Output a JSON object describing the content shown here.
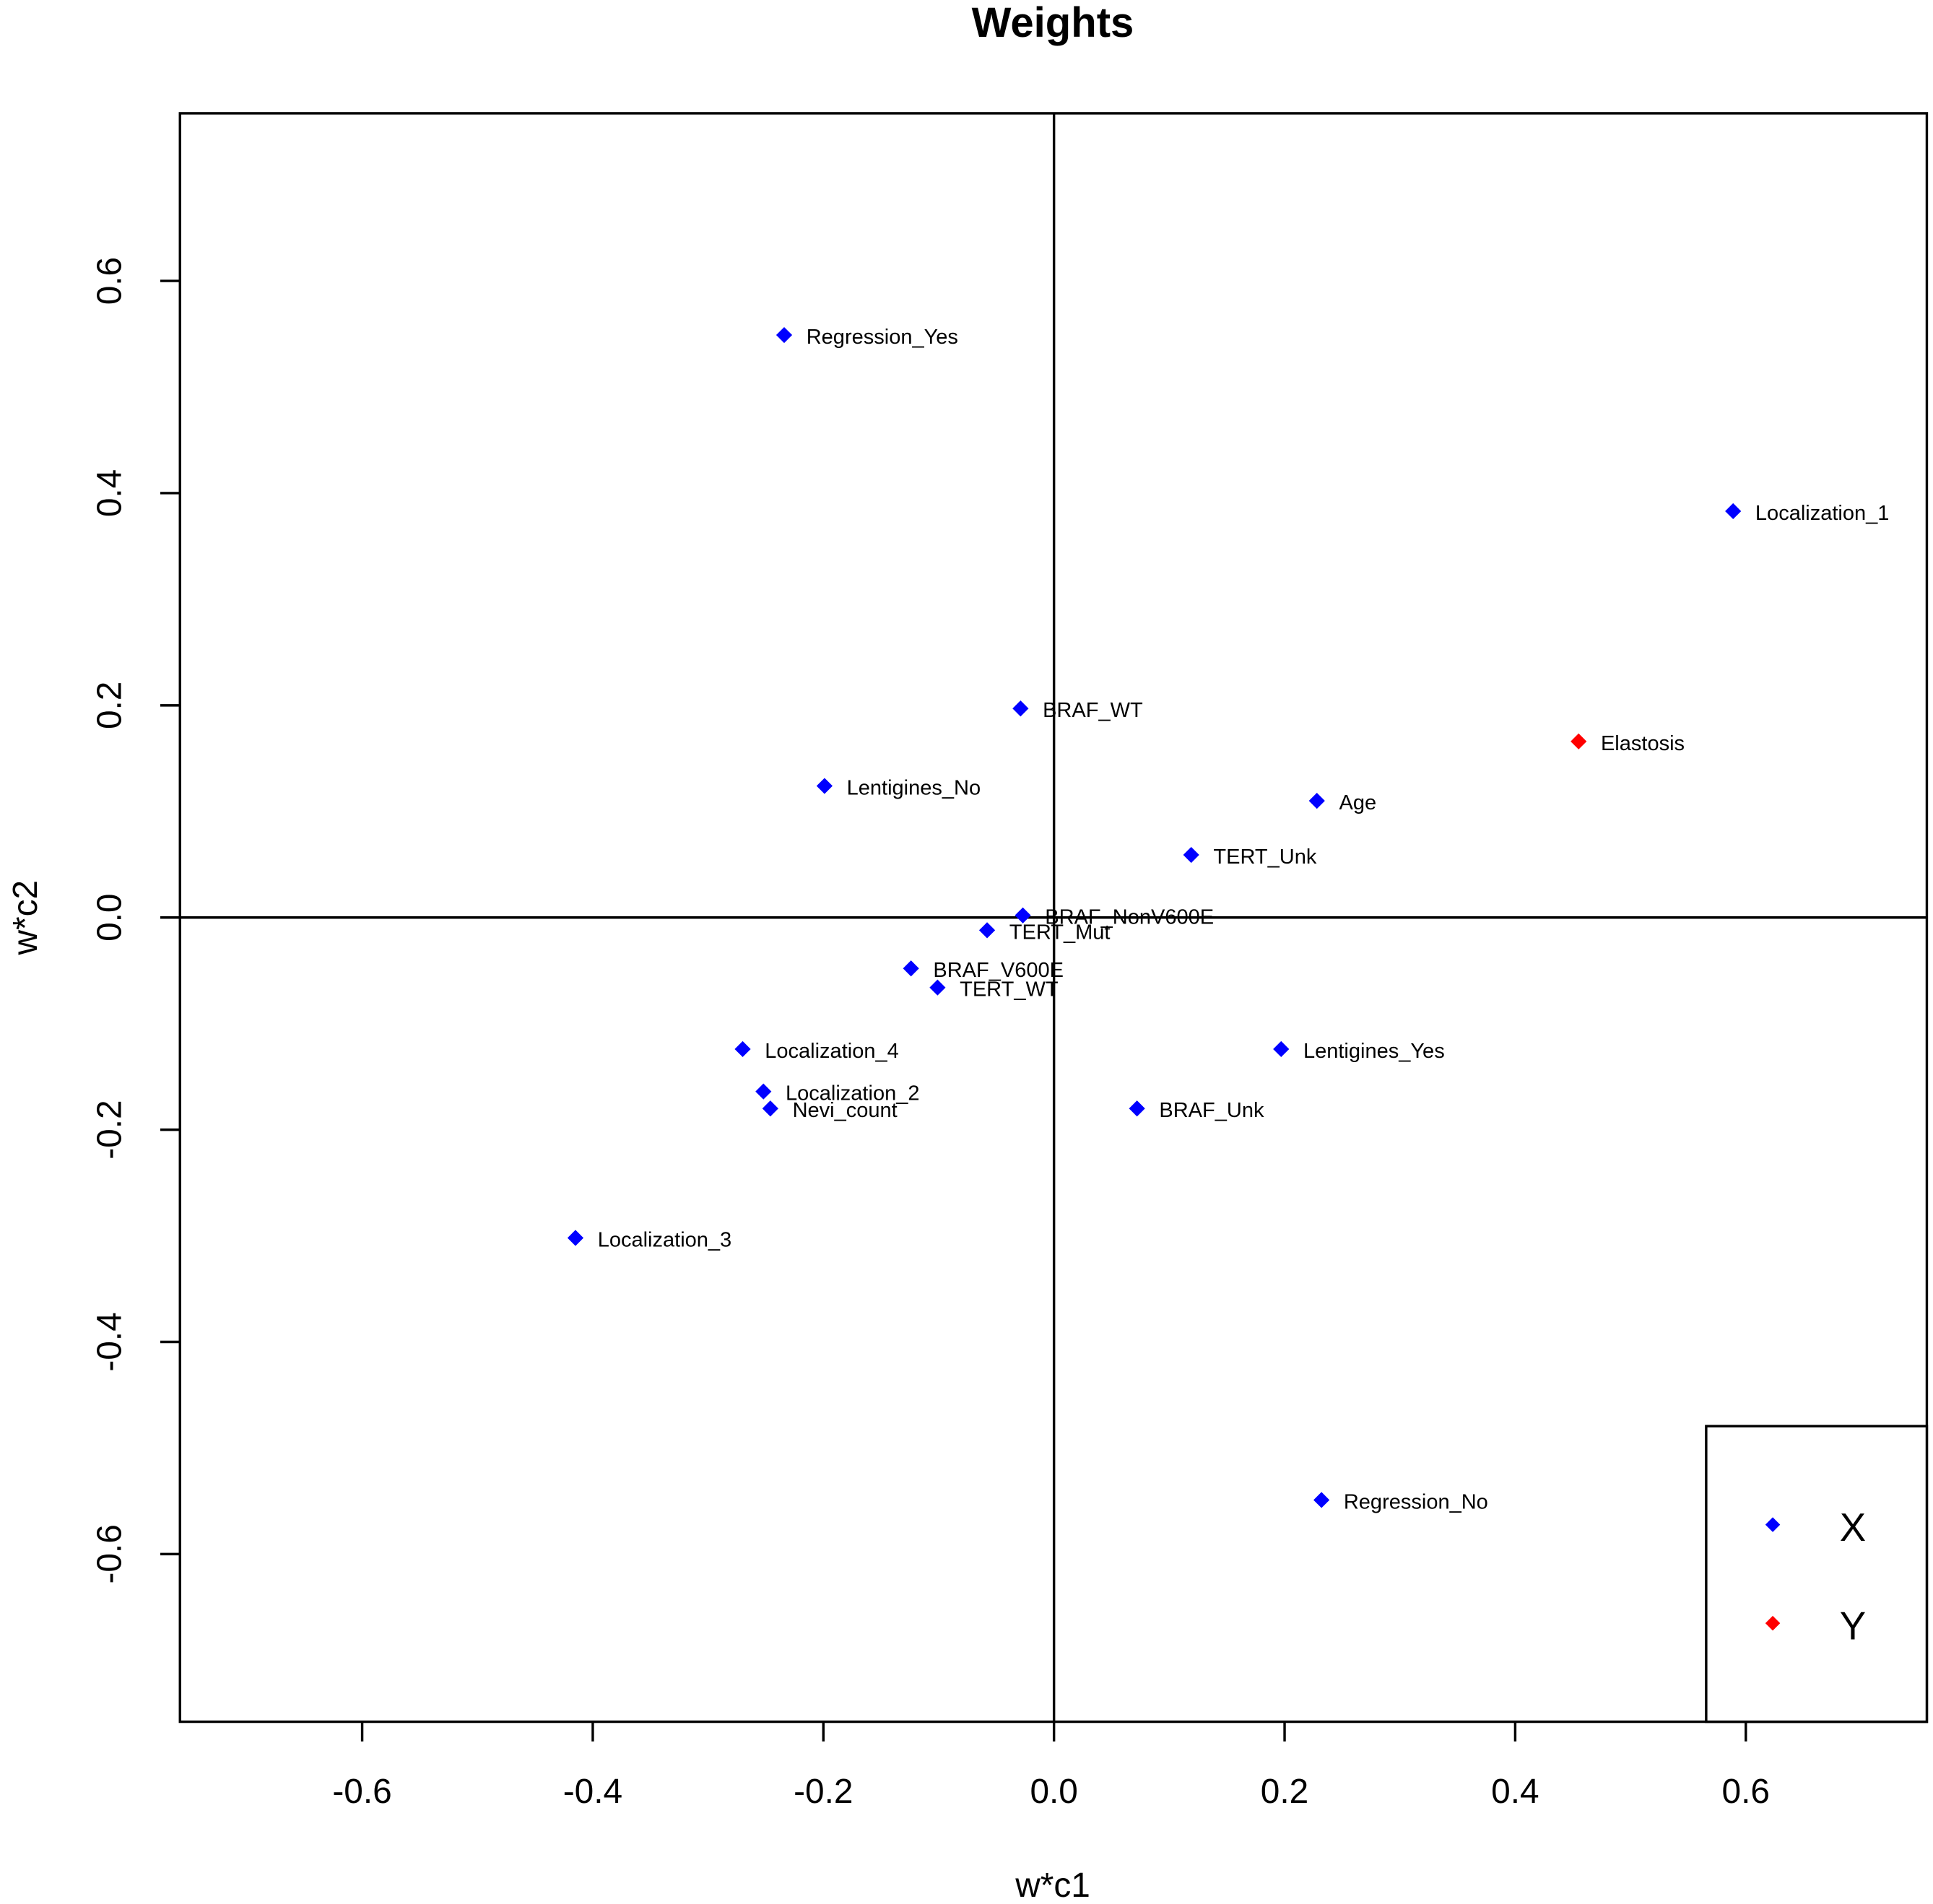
{
  "chart_data": {
    "type": "scatter",
    "title": "Weights",
    "xlabel": "w*c1",
    "ylabel": "w*c2",
    "xlim": [
      -0.758,
      0.757
    ],
    "ylim": [
      -0.758,
      0.758
    ],
    "xticks": [
      -0.6,
      -0.4,
      -0.2,
      0.0,
      0.2,
      0.4,
      0.6
    ],
    "xtick_labels": [
      "-0.6",
      "-0.4",
      "-0.2",
      "0.0",
      "0.2",
      "0.4",
      "0.6"
    ],
    "yticks": [
      -0.6,
      -0.4,
      -0.2,
      0.0,
      0.2,
      0.4,
      0.6
    ],
    "ytick_labels": [
      "-0.6",
      "-0.4",
      "-0.2",
      "0.0",
      "0.2",
      "0.4",
      "0.6"
    ],
    "reference_lines": {
      "x": 0,
      "y": 0
    },
    "grid": false,
    "legend": {
      "placement": "bottom-right",
      "entries": [
        {
          "label": "X",
          "color": "#0000ff"
        },
        {
          "label": "Y",
          "color": "#ff0000"
        }
      ]
    },
    "series": [
      {
        "name": "X",
        "color": "#0000ff",
        "points": [
          {
            "label": "Regression_Yes",
            "x": -0.234,
            "y": 0.549
          },
          {
            "label": "Localization_1",
            "x": 0.589,
            "y": 0.383
          },
          {
            "label": "BRAF_WT",
            "x": -0.029,
            "y": 0.197
          },
          {
            "label": "Lentigines_No",
            "x": -0.199,
            "y": 0.124
          },
          {
            "label": "Age",
            "x": 0.228,
            "y": 0.11
          },
          {
            "label": "TERT_Unk",
            "x": 0.119,
            "y": 0.059
          },
          {
            "label": "BRAF_NonV600E",
            "x": -0.027,
            "y": 0.002
          },
          {
            "label": "TERT_Mut",
            "x": -0.058,
            "y": -0.012
          },
          {
            "label": "BRAF_V600E",
            "x": -0.124,
            "y": -0.048
          },
          {
            "label": "TERT_WT",
            "x": -0.101,
            "y": -0.066
          },
          {
            "label": "Localization_4",
            "x": -0.27,
            "y": -0.124
          },
          {
            "label": "Lentigines_Yes",
            "x": 0.197,
            "y": -0.124
          },
          {
            "label": "Localization_2",
            "x": -0.252,
            "y": -0.164
          },
          {
            "label": "Nevi_count",
            "x": -0.246,
            "y": -0.18
          },
          {
            "label": "BRAF_Unk",
            "x": 0.072,
            "y": -0.18
          },
          {
            "label": "Localization_3",
            "x": -0.415,
            "y": -0.302
          },
          {
            "label": "Regression_No",
            "x": 0.232,
            "y": -0.549
          }
        ]
      },
      {
        "name": "Y",
        "color": "#ff0000",
        "points": [
          {
            "label": "Elastosis",
            "x": 0.455,
            "y": 0.166
          }
        ]
      }
    ]
  }
}
